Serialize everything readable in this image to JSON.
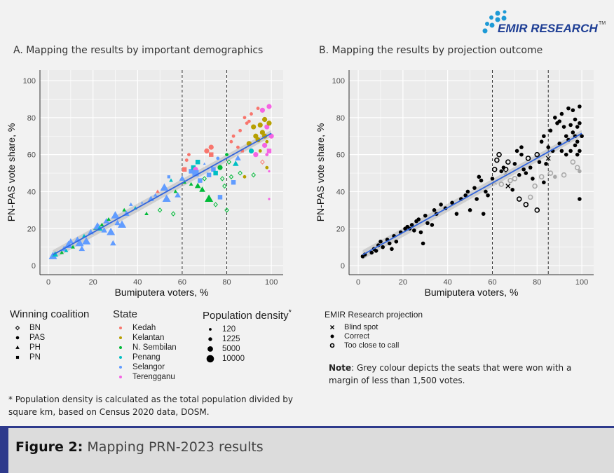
{
  "logo": {
    "text": "EMIR RESEARCH",
    "tm": "TM",
    "color": "#1f3f95",
    "dot_color": "#1e9ad6"
  },
  "figure": {
    "label": "Figure 2:",
    "caption": "Mapping PRN-2023 results"
  },
  "colors": {
    "Kedah": "#F8766D",
    "Kelantan": "#B79F00",
    "N. Sembilan": "#00BA38",
    "Penang": "#00BFC4",
    "Selangor": "#619CFF",
    "Terengganu": "#F564E3",
    "grey": "#a9a9a9",
    "trend": "#3366dd",
    "panel": "#ebebeb"
  },
  "legend_a": {
    "coalition_title": "Winning coalition",
    "coalitions": [
      {
        "label": "BN",
        "shape": "open-diamond"
      },
      {
        "label": "PAS",
        "shape": "circle"
      },
      {
        "label": "PH",
        "shape": "triangle"
      },
      {
        "label": "PN",
        "shape": "square"
      }
    ],
    "state_title": "State",
    "states": [
      "Kedah",
      "Kelantan",
      "N. Sembilan",
      "Penang",
      "Selangor",
      "Terengganu"
    ],
    "density_title": "Population density",
    "density_star": "*",
    "densities": [
      "120",
      "1225",
      "5000",
      "10000"
    ]
  },
  "footnote_a": "* Population density is calculated as the total population divided by square km, based on Census 2020 data, DOSM.",
  "legend_b": {
    "title": "EMIR Research projection",
    "items": [
      {
        "label": "Blind spot",
        "shape": "cross"
      },
      {
        "label": "Correct",
        "shape": "filled-circle"
      },
      {
        "label": "Too close to call",
        "shape": "open-circle"
      }
    ]
  },
  "note_b": {
    "bold": "Note",
    "text": ": Grey colour depicts the seats that were won with a margin of less than 1,500 votes."
  },
  "chart_data": [
    {
      "type": "scatter",
      "title": "A. Mapping the results by important demographics",
      "xlabel": "Bumiputera voters, %",
      "ylabel": "PN-PAS vote share, %",
      "xlim": [
        -3.8,
        105.3
      ],
      "ylim": [
        -4.9,
        105.7
      ],
      "xticks": [
        "0",
        "20",
        "40",
        "60",
        "80",
        "100"
      ],
      "yticks": [
        "0",
        "20",
        "40",
        "60",
        "80",
        "100"
      ],
      "vlines": [
        60,
        80
      ],
      "grid": true,
      "trend": {
        "intercept": 4.5,
        "slope": 0.67
      },
      "encoding": {
        "color": "state",
        "shape": "coalition",
        "size": "density"
      }
    },
    {
      "type": "scatter",
      "title": "B. Mapping the results by projection outcome",
      "xlabel": "Bumiputera voters, %",
      "ylabel": "PN-PAS vote share, %",
      "xlim": [
        -4.1,
        105.3
      ],
      "ylim": [
        -4.9,
        105.7
      ],
      "xticks": [
        "0",
        "20",
        "40",
        "60",
        "80",
        "100"
      ],
      "yticks": [
        "0",
        "20",
        "40",
        "60",
        "80",
        "100"
      ],
      "vlines": [
        60,
        85
      ],
      "grid": true,
      "trend": {
        "intercept": 4.5,
        "slope": 0.67
      },
      "encoding": {
        "shape": "projection",
        "grey": "margin_below_1500"
      }
    }
  ],
  "seats_fields": [
    "bumiputera_pct",
    "pnpas_share_pct",
    "state",
    "coalition",
    "density",
    "projection",
    "grey"
  ],
  "seats": [
    [
      2,
      5,
      "Selangor",
      "PH",
      10000,
      "Correct",
      0
    ],
    [
      3,
      6,
      "Penang",
      "PH",
      5000,
      "Correct",
      0
    ],
    [
      6,
      7,
      "N. Sembilan",
      "PH",
      1225,
      "Correct",
      0
    ],
    [
      7,
      9,
      "Selangor",
      "PH",
      5000,
      "Correct",
      0
    ],
    [
      8,
      8,
      "Penang",
      "PH",
      1225,
      "Correct",
      0
    ],
    [
      9,
      11,
      "Selangor",
      "PH",
      10000,
      "Correct",
      0
    ],
    [
      10,
      13,
      "Selangor",
      "PH",
      5000,
      "Correct",
      0
    ],
    [
      11,
      10,
      "N. Sembilan",
      "PH",
      1225,
      "Correct",
      0
    ],
    [
      13,
      14,
      "Selangor",
      "PH",
      5000,
      "Correct",
      0
    ],
    [
      14,
      12,
      "Selangor",
      "PH",
      10000,
      "Correct",
      0
    ],
    [
      15,
      9,
      "Selangor",
      "PH",
      5000,
      "Correct",
      0
    ],
    [
      16,
      16,
      "Penang",
      "PH",
      1225,
      "Correct",
      0
    ],
    [
      17,
      13,
      "Selangor",
      "PH",
      10000,
      "Correct",
      0
    ],
    [
      19,
      18,
      "Selangor",
      "PH",
      5000,
      "Correct",
      0
    ],
    [
      21,
      20,
      "N. Sembilan",
      "PH",
      1225,
      "Correct",
      0
    ],
    [
      22,
      21,
      "Selangor",
      "PH",
      10000,
      "Correct",
      0
    ],
    [
      23,
      20,
      "Penang",
      "PH",
      5000,
      "Correct",
      0
    ],
    [
      24,
      22,
      "N. Sembilan",
      "PH",
      1225,
      "Correct",
      0
    ],
    [
      25,
      19,
      "Selangor",
      "PH",
      5000,
      "Correct",
      0
    ],
    [
      26,
      24,
      "Selangor",
      "PH",
      5000,
      "Correct",
      0
    ],
    [
      27,
      25,
      "N. Sembilan",
      "PH",
      1225,
      "Correct",
      0
    ],
    [
      28,
      18,
      "Selangor",
      "PH",
      10000,
      "Correct",
      0
    ],
    [
      29,
      12,
      "Selangor",
      "PH",
      5000,
      "Correct",
      0
    ],
    [
      30,
      27,
      "Selangor",
      "PH",
      10000,
      "Correct",
      0
    ],
    [
      31,
      23,
      "Selangor",
      "PH",
      5000,
      "Correct",
      0
    ],
    [
      33,
      22,
      "Selangor",
      "PH",
      10000,
      "Correct",
      0
    ],
    [
      34,
      30,
      "N. Sembilan",
      "PH",
      1225,
      "Correct",
      0
    ],
    [
      35,
      28,
      "Selangor",
      "PH",
      5000,
      "Correct",
      0
    ],
    [
      37,
      33,
      "Selangor",
      "PH",
      1225,
      "Correct",
      0
    ],
    [
      39,
      31,
      "Penang",
      "PH",
      1225,
      "Correct",
      0
    ],
    [
      42,
      34,
      "Selangor",
      "PH",
      120,
      "Correct",
      0
    ],
    [
      44,
      28,
      "N. Sembilan",
      "PH",
      1225,
      "Correct",
      0
    ],
    [
      46,
      36,
      "Selangor",
      "PH",
      5000,
      "Correct",
      0
    ],
    [
      48,
      38,
      "Selangor",
      "PH",
      1225,
      "Correct",
      0
    ],
    [
      49,
      40,
      "Kedah",
      "PH",
      1225,
      "Correct",
      0
    ],
    [
      52,
      42,
      "Selangor",
      "PH",
      10000,
      "Correct",
      0
    ],
    [
      53,
      36,
      "Selangor",
      "PH",
      10000,
      "Correct",
      0
    ],
    [
      55,
      46,
      "Penang",
      "PH",
      1225,
      "Correct",
      0
    ],
    [
      57,
      40,
      "N. Sembilan",
      "PH",
      1225,
      "Correct",
      0
    ],
    [
      58,
      38,
      "Selangor",
      "PH",
      5000,
      "Correct",
      0
    ],
    [
      56,
      28,
      "N. Sembilan",
      "BN",
      1225,
      "Correct",
      0
    ],
    [
      50,
      30,
      "N. Sembilan",
      "BN",
      1225,
      "Correct",
      0
    ],
    [
      54,
      48,
      "Selangor",
      "PN",
      1225,
      "Correct",
      0
    ],
    [
      60,
      47,
      "Selangor",
      "PH",
      5000,
      "Correct",
      0
    ],
    [
      61,
      52,
      "Kedah",
      "PN",
      5000,
      "Too close to call",
      0
    ],
    [
      61,
      45,
      "N. Sembilan",
      "PH",
      1225,
      "Blind spot",
      1
    ],
    [
      62,
      57,
      "Kedah",
      "PAS",
      1225,
      "Too close to call",
      0
    ],
    [
      63,
      60,
      "Kedah",
      "PAS",
      1225,
      "Too close to call",
      0
    ],
    [
      64,
      44,
      "N. Sembilan",
      "PH",
      1225,
      "Too close to call",
      1
    ],
    [
      64,
      51,
      "Selangor",
      "PN",
      5000,
      "Correct",
      0
    ],
    [
      65,
      53,
      "Penang",
      "PN",
      5000,
      "Correct",
      0
    ],
    [
      66,
      52,
      "Terengganu",
      "PAS",
      5000,
      "Too close to call",
      0
    ],
    [
      66,
      50,
      "Selangor",
      "PN",
      10000,
      "Blind spot",
      1
    ],
    [
      67,
      56,
      "Penang",
      "PN",
      5000,
      "Too close to call",
      0
    ],
    [
      67,
      43,
      "N. Sembilan",
      "PH",
      5000,
      "Blind spot",
      0
    ],
    [
      68,
      46,
      "Selangor",
      "PN",
      5000,
      "Too close to call",
      1
    ],
    [
      69,
      41,
      "N. Sembilan",
      "PH",
      5000,
      "Correct",
      0
    ],
    [
      70,
      47,
      "N. Sembilan",
      "BN",
      1225,
      "Too close to call",
      1
    ],
    [
      70,
      55,
      "Selangor",
      "PH",
      120,
      "Correct",
      0
    ],
    [
      71,
      62,
      "Kedah",
      "PAS",
      5000,
      "Correct",
      0
    ],
    [
      72,
      49,
      "Selangor",
      "PN",
      5000,
      "Correct",
      0
    ],
    [
      72,
      36,
      "N. Sembilan",
      "PH",
      10000,
      "Too close to call",
      0
    ],
    [
      73,
      64,
      "Kedah",
      "PAS",
      5000,
      "Correct",
      0
    ],
    [
      73,
      60,
      "Kedah",
      "PN",
      5000,
      "Correct",
      0
    ],
    [
      74,
      52,
      "Selangor",
      "PN",
      5000,
      "Correct",
      0
    ],
    [
      75,
      50,
      "Penang",
      "PN",
      5000,
      "Correct",
      0
    ],
    [
      75,
      33,
      "N. Sembilan",
      "BN",
      1225,
      "Too close to call",
      0
    ],
    [
      76,
      58,
      "Selangor",
      "PAS",
      1225,
      "Too close to call",
      0
    ],
    [
      77,
      53,
      "N. Sembilan",
      "PAS",
      5000,
      "Correct",
      0
    ],
    [
      77,
      37,
      "Selangor",
      "PN",
      5000,
      "Too close to call",
      1
    ],
    [
      78,
      47,
      "N. Sembilan",
      "BN",
      1225,
      "Correct",
      0
    ],
    [
      79,
      43,
      "N. Sembilan",
      "BN",
      1225,
      "Too close to call",
      1
    ],
    [
      80,
      60,
      "N. Sembilan",
      "PAS",
      1225,
      "Too close to call",
      0
    ],
    [
      80,
      30,
      "N. Sembilan",
      "BN",
      1225,
      "Too close to call",
      0
    ],
    [
      81,
      56,
      "N. Sembilan",
      "BN",
      1225,
      "Correct",
      0
    ],
    [
      82,
      67,
      "Kedah",
      "PAS",
      1225,
      "Correct",
      0
    ],
    [
      82,
      48,
      "N. Sembilan",
      "BN",
      1225,
      "Too close to call",
      1
    ],
    [
      83,
      70,
      "Kedah",
      "PAS",
      1225,
      "Correct",
      0
    ],
    [
      83,
      45,
      "Selangor",
      "PN",
      5000,
      "Correct",
      0
    ],
    [
      84,
      55,
      "Penang",
      "PH",
      5000,
      "Correct",
      0
    ],
    [
      85,
      58,
      "Selangor",
      "PH",
      5000,
      "Blind spot",
      0
    ],
    [
      85,
      64,
      "Kedah",
      "PAS",
      1225,
      "Correct",
      0
    ],
    [
      86,
      73,
      "Kedah",
      "PAS",
      1225,
      "Correct",
      0
    ],
    [
      86,
      50,
      "N. Sembilan",
      "BN",
      1225,
      "Too close to call",
      1
    ],
    [
      87,
      62,
      "Kedah",
      "PN",
      1225,
      "Correct",
      0
    ],
    [
      88,
      80,
      "Kedah",
      "PAS",
      1225,
      "Correct",
      0
    ],
    [
      88,
      48,
      "Kelantan",
      "PAS",
      1225,
      "Correct",
      1
    ],
    [
      89,
      77,
      "Kedah",
      "PAS",
      1225,
      "Correct",
      0
    ],
    [
      90,
      78,
      "Kedah",
      "PAS",
      1225,
      "Correct",
      0
    ],
    [
      90,
      66,
      "Kelantan",
      "PAS",
      5000,
      "Correct",
      0
    ],
    [
      91,
      62,
      "Penang",
      "PAS",
      5000,
      "Correct",
      0
    ],
    [
      91,
      82,
      "Kedah",
      "PAS",
      1225,
      "Correct",
      0
    ],
    [
      92,
      75,
      "Kelantan",
      "PAS",
      5000,
      "Correct",
      0
    ],
    [
      92,
      49,
      "N. Sembilan",
      "BN",
      1225,
      "Too close to call",
      1
    ],
    [
      93,
      60,
      "Terengganu",
      "PAS",
      5000,
      "Correct",
      0
    ],
    [
      93,
      70,
      "Kelantan",
      "PAS",
      5000,
      "Correct",
      0
    ],
    [
      94,
      85,
      "Kedah",
      "PAS",
      1225,
      "Correct",
      0
    ],
    [
      94,
      68,
      "Kelantan",
      "PAS",
      5000,
      "Correct",
      0
    ],
    [
      95,
      76,
      "Kelantan",
      "PAS",
      5000,
      "Correct",
      0
    ],
    [
      95,
      62,
      "Kelantan",
      "PAS",
      1225,
      "Correct",
      0
    ],
    [
      96,
      84,
      "Terengganu",
      "PAS",
      5000,
      "Correct",
      0
    ],
    [
      96,
      72,
      "Kelantan",
      "PAS",
      5000,
      "Correct",
      0
    ],
    [
      96,
      56,
      "Kedah",
      "BN",
      1225,
      "Too close to call",
      1
    ],
    [
      97,
      79,
      "Kelantan",
      "PAS",
      5000,
      "Correct",
      0
    ],
    [
      97,
      65,
      "Terengganu",
      "PAS",
      5000,
      "Correct",
      0
    ],
    [
      97,
      70,
      "Kelantan",
      "PAS",
      5000,
      "Correct",
      0
    ],
    [
      98,
      75,
      "Terengganu",
      "PAS",
      5000,
      "Correct",
      0
    ],
    [
      98,
      67,
      "Kelantan",
      "PAS",
      1225,
      "Correct",
      0
    ],
    [
      98,
      60,
      "Terengganu",
      "PAS",
      1225,
      "Correct",
      0
    ],
    [
      98,
      53,
      "Kelantan",
      "PAS",
      1225,
      "Too close to call",
      1
    ],
    [
      99,
      86,
      "Terengganu",
      "PAS",
      5000,
      "Correct",
      0
    ],
    [
      99,
      77,
      "Kelantan",
      "PAS",
      5000,
      "Correct",
      0
    ],
    [
      99,
      62,
      "Terengganu",
      "PN",
      5000,
      "Correct",
      0
    ],
    [
      99,
      51,
      "Terengganu",
      "PAS",
      120,
      "Correct",
      1
    ],
    [
      99,
      36,
      "Terengganu",
      "PAS",
      120,
      "Correct",
      0
    ],
    [
      100,
      70,
      "Terengganu",
      "PAS",
      5000,
      "Correct",
      0
    ]
  ]
}
